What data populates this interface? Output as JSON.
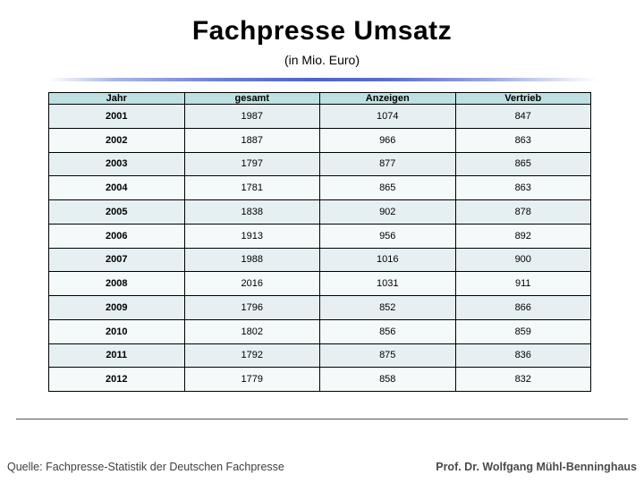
{
  "title": "Fachpresse Umsatz",
  "subtitle": "(in Mio. Euro)",
  "table": {
    "headers": [
      "Jahr",
      "gesamt",
      "Anzeigen",
      "Vertrieb"
    ],
    "rows": [
      {
        "jahr": "2001",
        "gesamt": "1987",
        "anzeigen": "1074",
        "vertrieb": "847"
      },
      {
        "jahr": "2002",
        "gesamt": "1887",
        "anzeigen": "966",
        "vertrieb": "863"
      },
      {
        "jahr": "2003",
        "gesamt": "1797",
        "anzeigen": "877",
        "vertrieb": "865"
      },
      {
        "jahr": "2004",
        "gesamt": "1781",
        "anzeigen": "865",
        "vertrieb": "863"
      },
      {
        "jahr": "2005",
        "gesamt": "1838",
        "anzeigen": "902",
        "vertrieb": "878"
      },
      {
        "jahr": "2006",
        "gesamt": "1913",
        "anzeigen": "956",
        "vertrieb": "892"
      },
      {
        "jahr": "2007",
        "gesamt": "1988",
        "anzeigen": "1016",
        "vertrieb": "900"
      },
      {
        "jahr": "2008",
        "gesamt": "2016",
        "anzeigen": "1031",
        "vertrieb": "911"
      },
      {
        "jahr": "2009",
        "gesamt": "1796",
        "anzeigen": "852",
        "vertrieb": "866"
      },
      {
        "jahr": "2010",
        "gesamt": "1802",
        "anzeigen": "856",
        "vertrieb": "859"
      },
      {
        "jahr": "2011",
        "gesamt": "1792",
        "anzeigen": "875",
        "vertrieb": "836"
      },
      {
        "jahr": "2012",
        "gesamt": "1779",
        "anzeigen": "858",
        "vertrieb": "832"
      }
    ]
  },
  "footer": {
    "source": "Quelle: Fachpresse-Statistik der Deutschen Fachpresse",
    "author": "Prof. Dr. Wolfgang Mühl-Benninghaus"
  },
  "colors": {
    "header_bg": "#bfe0e2",
    "row_odd_bg": "#e6f0f2",
    "row_even_bg": "#f4f9fa",
    "divider_blue": "#5463c6",
    "footer_rule": "#555555"
  }
}
